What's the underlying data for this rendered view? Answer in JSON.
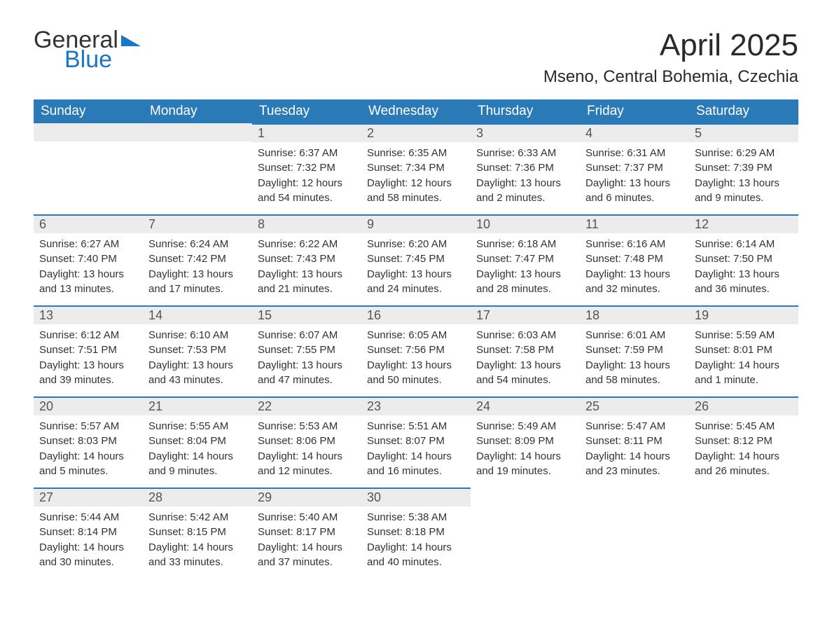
{
  "logo": {
    "line1": "General",
    "line2": "Blue",
    "accent_color": "#1976c5"
  },
  "title": "April 2025",
  "location": "Mseno, Central Bohemia, Czechia",
  "header_bg": "#2a7ab8",
  "header_fg": "#ffffff",
  "daynum_bg": "#ececec",
  "daynum_fg": "#555555",
  "border_color": "#2a7ab8",
  "text_color": "#333333",
  "columns": [
    "Sunday",
    "Monday",
    "Tuesday",
    "Wednesday",
    "Thursday",
    "Friday",
    "Saturday"
  ],
  "weeks": [
    [
      null,
      null,
      {
        "n": "1",
        "sunrise": "Sunrise: 6:37 AM",
        "sunset": "Sunset: 7:32 PM",
        "dl1": "Daylight: 12 hours",
        "dl2": "and 54 minutes."
      },
      {
        "n": "2",
        "sunrise": "Sunrise: 6:35 AM",
        "sunset": "Sunset: 7:34 PM",
        "dl1": "Daylight: 12 hours",
        "dl2": "and 58 minutes."
      },
      {
        "n": "3",
        "sunrise": "Sunrise: 6:33 AM",
        "sunset": "Sunset: 7:36 PM",
        "dl1": "Daylight: 13 hours",
        "dl2": "and 2 minutes."
      },
      {
        "n": "4",
        "sunrise": "Sunrise: 6:31 AM",
        "sunset": "Sunset: 7:37 PM",
        "dl1": "Daylight: 13 hours",
        "dl2": "and 6 minutes."
      },
      {
        "n": "5",
        "sunrise": "Sunrise: 6:29 AM",
        "sunset": "Sunset: 7:39 PM",
        "dl1": "Daylight: 13 hours",
        "dl2": "and 9 minutes."
      }
    ],
    [
      {
        "n": "6",
        "sunrise": "Sunrise: 6:27 AM",
        "sunset": "Sunset: 7:40 PM",
        "dl1": "Daylight: 13 hours",
        "dl2": "and 13 minutes."
      },
      {
        "n": "7",
        "sunrise": "Sunrise: 6:24 AM",
        "sunset": "Sunset: 7:42 PM",
        "dl1": "Daylight: 13 hours",
        "dl2": "and 17 minutes."
      },
      {
        "n": "8",
        "sunrise": "Sunrise: 6:22 AM",
        "sunset": "Sunset: 7:43 PM",
        "dl1": "Daylight: 13 hours",
        "dl2": "and 21 minutes."
      },
      {
        "n": "9",
        "sunrise": "Sunrise: 6:20 AM",
        "sunset": "Sunset: 7:45 PM",
        "dl1": "Daylight: 13 hours",
        "dl2": "and 24 minutes."
      },
      {
        "n": "10",
        "sunrise": "Sunrise: 6:18 AM",
        "sunset": "Sunset: 7:47 PM",
        "dl1": "Daylight: 13 hours",
        "dl2": "and 28 minutes."
      },
      {
        "n": "11",
        "sunrise": "Sunrise: 6:16 AM",
        "sunset": "Sunset: 7:48 PM",
        "dl1": "Daylight: 13 hours",
        "dl2": "and 32 minutes."
      },
      {
        "n": "12",
        "sunrise": "Sunrise: 6:14 AM",
        "sunset": "Sunset: 7:50 PM",
        "dl1": "Daylight: 13 hours",
        "dl2": "and 36 minutes."
      }
    ],
    [
      {
        "n": "13",
        "sunrise": "Sunrise: 6:12 AM",
        "sunset": "Sunset: 7:51 PM",
        "dl1": "Daylight: 13 hours",
        "dl2": "and 39 minutes."
      },
      {
        "n": "14",
        "sunrise": "Sunrise: 6:10 AM",
        "sunset": "Sunset: 7:53 PM",
        "dl1": "Daylight: 13 hours",
        "dl2": "and 43 minutes."
      },
      {
        "n": "15",
        "sunrise": "Sunrise: 6:07 AM",
        "sunset": "Sunset: 7:55 PM",
        "dl1": "Daylight: 13 hours",
        "dl2": "and 47 minutes."
      },
      {
        "n": "16",
        "sunrise": "Sunrise: 6:05 AM",
        "sunset": "Sunset: 7:56 PM",
        "dl1": "Daylight: 13 hours",
        "dl2": "and 50 minutes."
      },
      {
        "n": "17",
        "sunrise": "Sunrise: 6:03 AM",
        "sunset": "Sunset: 7:58 PM",
        "dl1": "Daylight: 13 hours",
        "dl2": "and 54 minutes."
      },
      {
        "n": "18",
        "sunrise": "Sunrise: 6:01 AM",
        "sunset": "Sunset: 7:59 PM",
        "dl1": "Daylight: 13 hours",
        "dl2": "and 58 minutes."
      },
      {
        "n": "19",
        "sunrise": "Sunrise: 5:59 AM",
        "sunset": "Sunset: 8:01 PM",
        "dl1": "Daylight: 14 hours",
        "dl2": "and 1 minute."
      }
    ],
    [
      {
        "n": "20",
        "sunrise": "Sunrise: 5:57 AM",
        "sunset": "Sunset: 8:03 PM",
        "dl1": "Daylight: 14 hours",
        "dl2": "and 5 minutes."
      },
      {
        "n": "21",
        "sunrise": "Sunrise: 5:55 AM",
        "sunset": "Sunset: 8:04 PM",
        "dl1": "Daylight: 14 hours",
        "dl2": "and 9 minutes."
      },
      {
        "n": "22",
        "sunrise": "Sunrise: 5:53 AM",
        "sunset": "Sunset: 8:06 PM",
        "dl1": "Daylight: 14 hours",
        "dl2": "and 12 minutes."
      },
      {
        "n": "23",
        "sunrise": "Sunrise: 5:51 AM",
        "sunset": "Sunset: 8:07 PM",
        "dl1": "Daylight: 14 hours",
        "dl2": "and 16 minutes."
      },
      {
        "n": "24",
        "sunrise": "Sunrise: 5:49 AM",
        "sunset": "Sunset: 8:09 PM",
        "dl1": "Daylight: 14 hours",
        "dl2": "and 19 minutes."
      },
      {
        "n": "25",
        "sunrise": "Sunrise: 5:47 AM",
        "sunset": "Sunset: 8:11 PM",
        "dl1": "Daylight: 14 hours",
        "dl2": "and 23 minutes."
      },
      {
        "n": "26",
        "sunrise": "Sunrise: 5:45 AM",
        "sunset": "Sunset: 8:12 PM",
        "dl1": "Daylight: 14 hours",
        "dl2": "and 26 minutes."
      }
    ],
    [
      {
        "n": "27",
        "sunrise": "Sunrise: 5:44 AM",
        "sunset": "Sunset: 8:14 PM",
        "dl1": "Daylight: 14 hours",
        "dl2": "and 30 minutes."
      },
      {
        "n": "28",
        "sunrise": "Sunrise: 5:42 AM",
        "sunset": "Sunset: 8:15 PM",
        "dl1": "Daylight: 14 hours",
        "dl2": "and 33 minutes."
      },
      {
        "n": "29",
        "sunrise": "Sunrise: 5:40 AM",
        "sunset": "Sunset: 8:17 PM",
        "dl1": "Daylight: 14 hours",
        "dl2": "and 37 minutes."
      },
      {
        "n": "30",
        "sunrise": "Sunrise: 5:38 AM",
        "sunset": "Sunset: 8:18 PM",
        "dl1": "Daylight: 14 hours",
        "dl2": "and 40 minutes."
      },
      null,
      null,
      null
    ]
  ]
}
